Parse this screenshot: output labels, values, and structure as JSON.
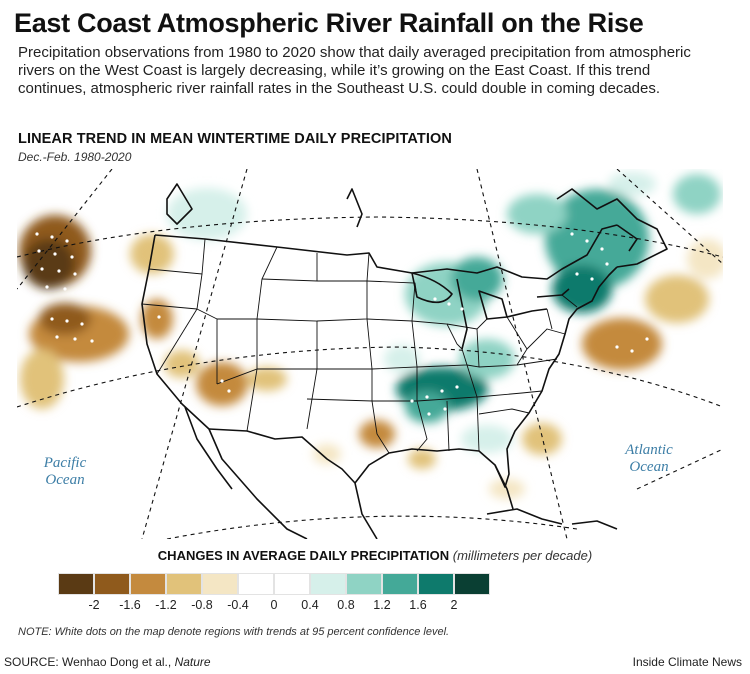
{
  "title": "East Coast Atmospheric River Rainfall on the Rise",
  "description": "Precipitation observations from 1980 to 2020 show that daily averaged precipitation from atmospheric rivers on the West Coast is largely decreasing, while it’s growing on the East Coast. If this trend continues, atmospheric river rainfall rates in the Southeast U.S. could double in coming decades.",
  "map": {
    "heading": "LINEAR TREND IN MEAN WINTERTIME DAILY PRECIPITATION",
    "subheading": "Dec.-Feb. 1980-2020",
    "ocean_labels": {
      "pacific_line1": "Pacific",
      "pacific_line2": "Ocean",
      "atlantic_line1": "Atlantic",
      "atlantic_line2": "Ocean"
    }
  },
  "legend": {
    "title": "CHANGES IN AVERAGE DAILY PRECIPITATION",
    "unit": "(millimeters per decade)",
    "colors": [
      "#5a3a14",
      "#8f5a1c",
      "#c48a3e",
      "#e1c27a",
      "#f4e6c4",
      "#ffffff",
      "#ffffff",
      "#d6f0ea",
      "#8fd3c4",
      "#44a998",
      "#0e7a6c",
      "#0a3f33"
    ],
    "tick_labels": [
      "-2",
      "-1.6",
      "-1.2",
      "-0.8",
      "-0.4",
      "0",
      "0.4",
      "0.8",
      "1.2",
      "1.6",
      "2"
    ]
  },
  "note": "NOTE: White dots on the map denote regions with trends at 95 percent confidence level.",
  "source": {
    "label": "SOURCE:",
    "authors": "Wenhao Dong et al.,",
    "journal": "Nature"
  },
  "credit": "Inside Climate News"
}
